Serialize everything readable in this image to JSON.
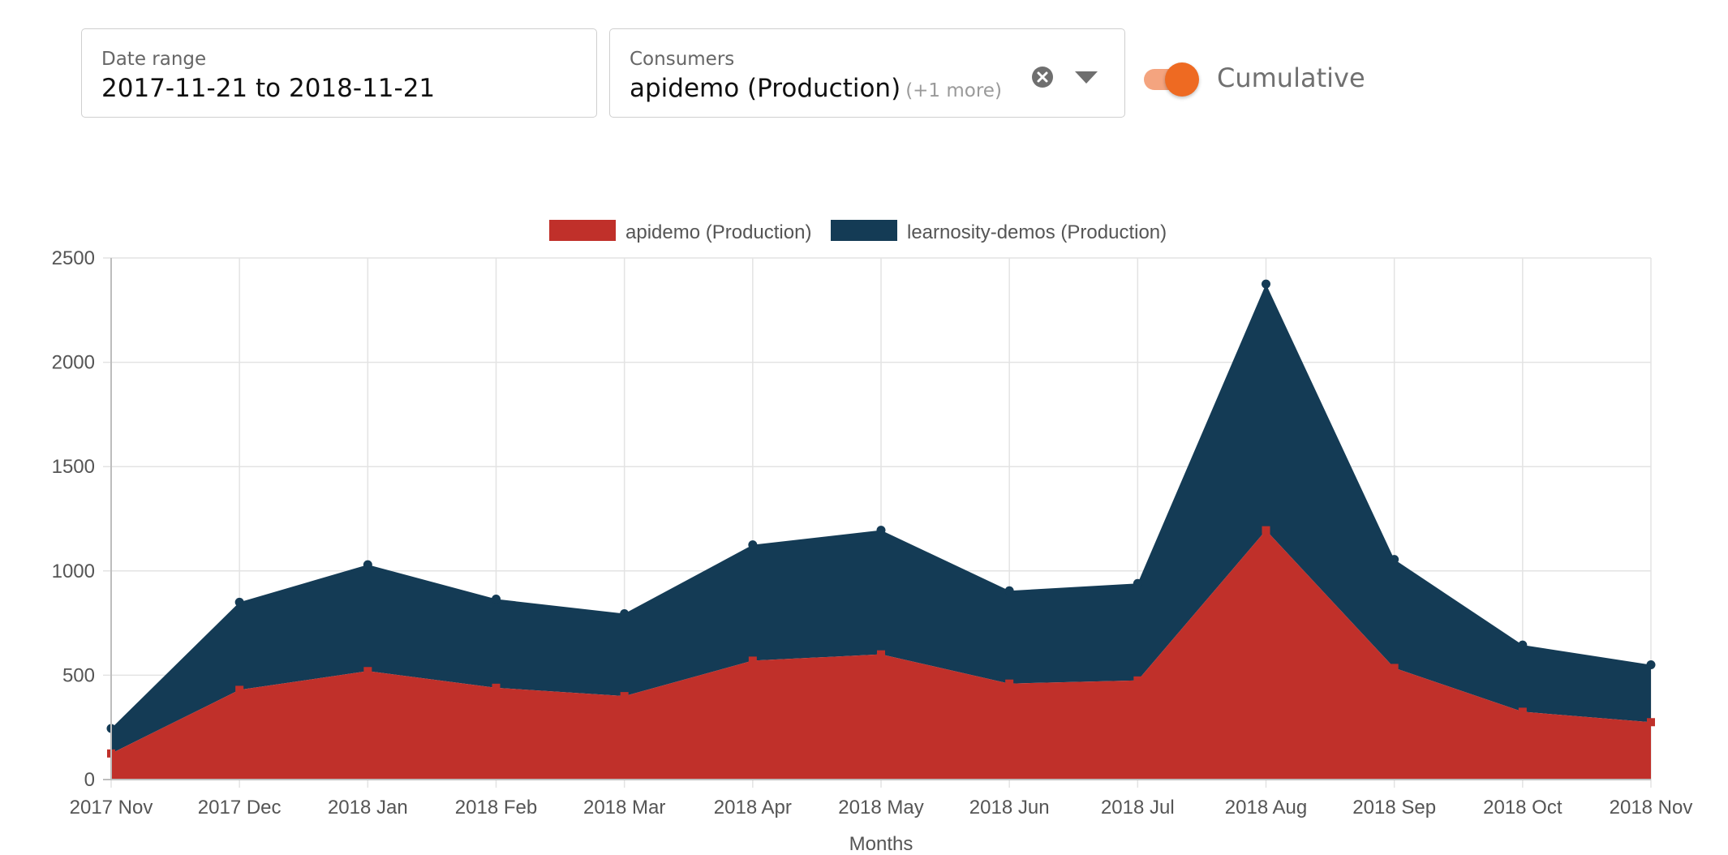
{
  "filters": {
    "date_range": {
      "label": "Date range",
      "value": "2017-11-21 to 2018-11-21"
    },
    "consumers": {
      "label": "Consumers",
      "value": "apidemo (Production)",
      "more": "(+1 more)"
    },
    "cumulative": {
      "label": "Cumulative",
      "checked": true
    }
  },
  "icons": {
    "clear": "clear-circle-x-icon",
    "dropdown": "caret-down-icon"
  },
  "colors": {
    "accent": "#ee6a22",
    "toggle_track": "#f4a47f",
    "series_1": "#c0302a",
    "series_2": "#143b55"
  },
  "chart_data": {
    "type": "area",
    "stacked": true,
    "title": "",
    "xlabel": "Months",
    "ylabel": "",
    "ylim": [
      0,
      2500
    ],
    "y_ticks": [
      0,
      500,
      1000,
      1500,
      2000,
      2500
    ],
    "grid": true,
    "legend_position": "top-center",
    "categories": [
      "2017 Nov",
      "2017 Dec",
      "2018 Jan",
      "2018 Feb",
      "2018 Mar",
      "2018 Apr",
      "2018 May",
      "2018 Jun",
      "2018 Jul",
      "2018 Aug",
      "2018 Sep",
      "2018 Oct",
      "2018 Nov"
    ],
    "series": [
      {
        "name": "apidemo (Production)",
        "color": "#c0302a",
        "values": [
          125,
          430,
          520,
          440,
          400,
          570,
          600,
          460,
          475,
          1195,
          535,
          325,
          275
        ]
      },
      {
        "name": "learnosity-demos (Production)",
        "color": "#143b55",
        "values": [
          120,
          420,
          510,
          425,
          395,
          555,
          595,
          445,
          465,
          1180,
          520,
          320,
          275
        ]
      }
    ]
  }
}
